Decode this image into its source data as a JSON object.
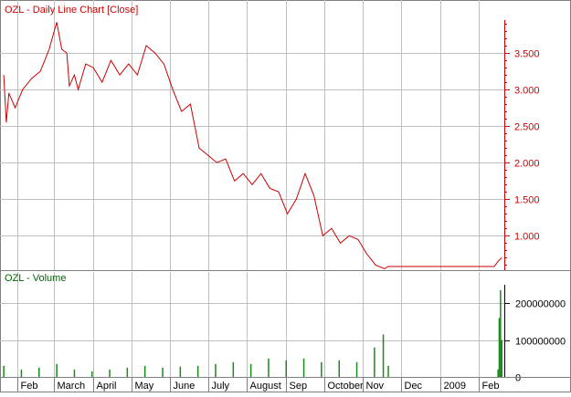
{
  "colors": {
    "price_line": "#cc0000",
    "price_axis": "#cc0000",
    "volume_bar": "#1a8a1a",
    "volume_text": "#006600",
    "grid": "#bfbfbf",
    "border": "#808080"
  },
  "chart_data": [
    {
      "type": "line",
      "title": "OZL - Daily Line Chart [Close]",
      "xlabel": "",
      "ylabel": "",
      "ylim": [
        0.53,
        3.95
      ],
      "y_ticks": [
        1.0,
        1.5,
        2.0,
        2.5,
        3.0,
        3.5
      ],
      "y_tick_labels": [
        "1.000",
        "1.500",
        "2.000",
        "2.500",
        "3.000",
        "3.500"
      ],
      "grid": true,
      "series": [
        {
          "name": "",
          "x": [
            "2008-01-21",
            "2008-01-23",
            "2008-01-25",
            "2008-01-30",
            "2008-02-05",
            "2008-02-12",
            "2008-02-19",
            "2008-02-26",
            "2008-03-03",
            "2008-03-07",
            "2008-03-11",
            "2008-03-13",
            "2008-03-17",
            "2008-03-20",
            "2008-03-26",
            "2008-04-01",
            "2008-04-08",
            "2008-04-15",
            "2008-04-22",
            "2008-04-29",
            "2008-05-06",
            "2008-05-13",
            "2008-05-20",
            "2008-05-27",
            "2008-06-03",
            "2008-06-10",
            "2008-06-17",
            "2008-06-24",
            "2008-07-01",
            "2008-07-08",
            "2008-07-15",
            "2008-07-22",
            "2008-07-29",
            "2008-08-05",
            "2008-08-12",
            "2008-08-19",
            "2008-08-26",
            "2008-09-02",
            "2008-09-09",
            "2008-09-16",
            "2008-09-23",
            "2008-09-30",
            "2008-10-07",
            "2008-10-14",
            "2008-10-21",
            "2008-10-28",
            "2008-11-04",
            "2008-11-11",
            "2008-11-18",
            "2008-11-21",
            "2008-11-24",
            "2008-12-01",
            "2008-12-15",
            "2009-01-01",
            "2009-01-15",
            "2009-02-01",
            "2009-02-13",
            "2009-02-16",
            "2009-02-19"
          ],
          "values": [
            3.2,
            2.55,
            2.95,
            2.75,
            3.0,
            3.15,
            3.25,
            3.55,
            3.92,
            3.55,
            3.5,
            3.05,
            3.2,
            3.0,
            3.35,
            3.3,
            3.1,
            3.4,
            3.2,
            3.35,
            3.2,
            3.6,
            3.5,
            3.35,
            3.0,
            2.7,
            2.8,
            2.2,
            2.1,
            2.0,
            2.05,
            1.75,
            1.85,
            1.7,
            1.85,
            1.65,
            1.6,
            1.3,
            1.5,
            1.85,
            1.55,
            1.0,
            1.1,
            0.9,
            1.0,
            0.95,
            0.75,
            0.6,
            0.55,
            0.58,
            0.58,
            0.58,
            0.58,
            0.58,
            0.58,
            0.58,
            0.58,
            0.65,
            0.7
          ]
        }
      ],
      "x_tick_labels": [
        "Feb",
        "March",
        "April",
        "May",
        "June",
        "July",
        "August",
        "Sep",
        "October",
        "Nov",
        "Dec",
        "2009",
        "Feb"
      ]
    },
    {
      "type": "bar",
      "title": "OZL - Volume",
      "xlabel": "",
      "ylabel": "",
      "ylim": [
        0,
        250000000
      ],
      "y_ticks": [
        0,
        100000000,
        200000000
      ],
      "y_tick_labels": [
        "0",
        "100000000",
        "200000000"
      ],
      "grid": true,
      "series": [
        {
          "name": "",
          "x": [
            "2008-01-21",
            "2008-02-04",
            "2008-02-18",
            "2008-03-03",
            "2008-03-17",
            "2008-03-31",
            "2008-04-14",
            "2008-04-28",
            "2008-05-12",
            "2008-05-26",
            "2008-06-09",
            "2008-06-23",
            "2008-07-07",
            "2008-07-21",
            "2008-08-04",
            "2008-08-18",
            "2008-09-01",
            "2008-09-15",
            "2008-09-29",
            "2008-10-13",
            "2008-10-27",
            "2008-11-10",
            "2008-11-17",
            "2008-11-21",
            "2009-02-16",
            "2009-02-17",
            "2009-02-18",
            "2009-02-19"
          ],
          "values": [
            30000000,
            20000000,
            25000000,
            35000000,
            20000000,
            15000000,
            20000000,
            25000000,
            30000000,
            25000000,
            28000000,
            30000000,
            35000000,
            40000000,
            35000000,
            50000000,
            45000000,
            50000000,
            40000000,
            45000000,
            40000000,
            80000000,
            115000000,
            30000000,
            20000000,
            160000000,
            235000000,
            100000000
          ]
        }
      ],
      "x_tick_labels": [
        "Feb",
        "March",
        "April",
        "May",
        "June",
        "July",
        "August",
        "Sep",
        "October",
        "Nov",
        "Dec",
        "2009",
        "Feb"
      ]
    }
  ]
}
